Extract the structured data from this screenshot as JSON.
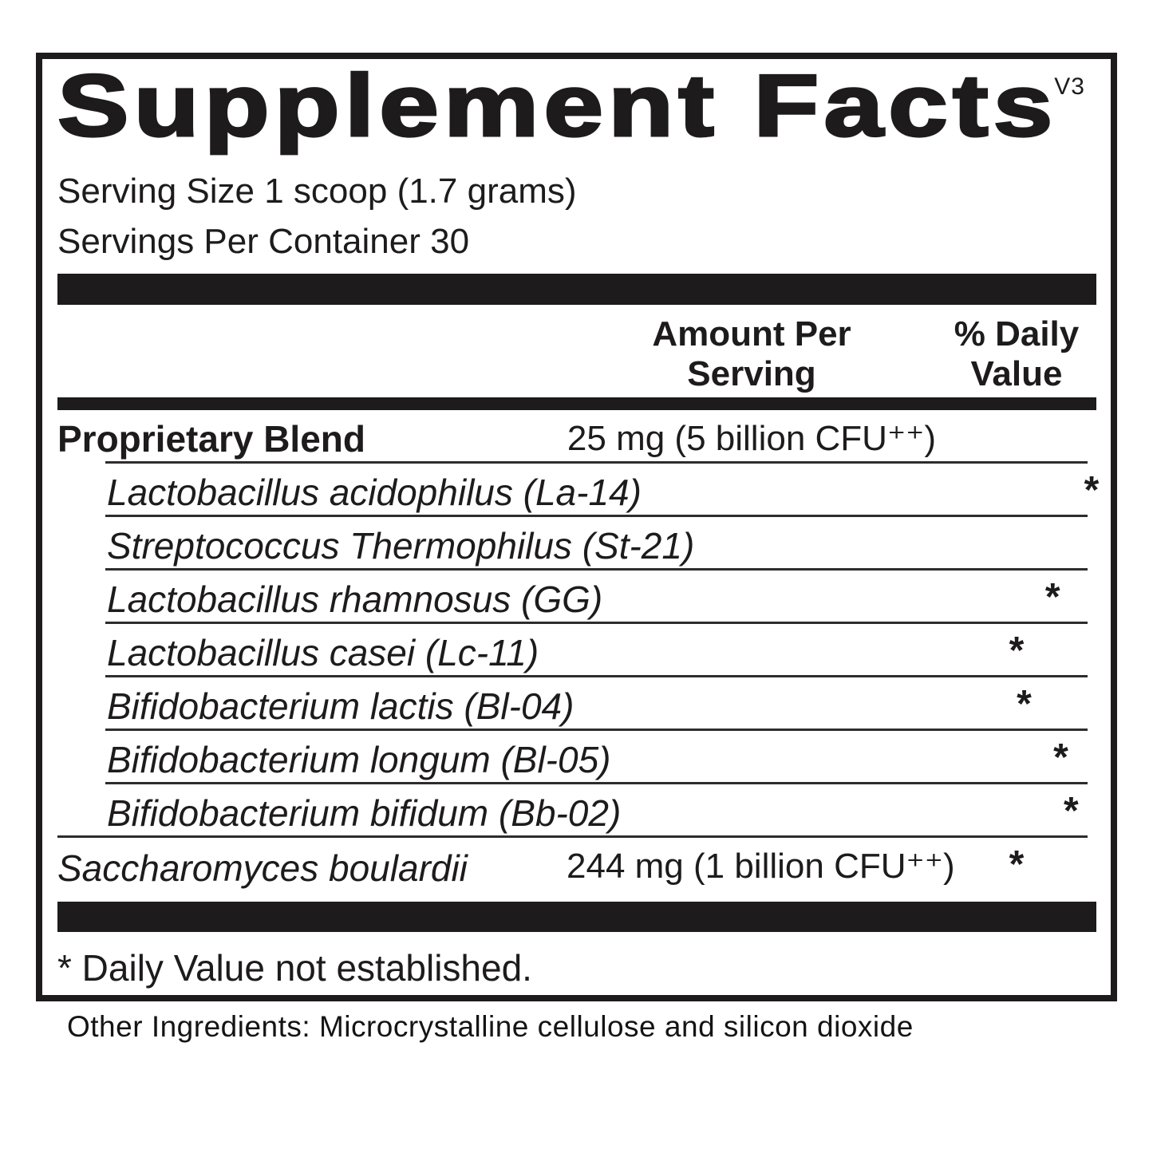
{
  "panel": {
    "title": "Supplement Facts",
    "version_tag": "V3",
    "serving_size": "Serving Size 1 scoop (1.7 grams)",
    "servings_per_container": "Servings Per Container 30",
    "header": {
      "amount_col_line1": "Amount Per",
      "amount_col_line2": "Serving",
      "dv_col_line1": "% Daily",
      "dv_col_line2": "Value"
    },
    "rows": [
      {
        "name": "Proprietary Blend",
        "amount": "25 mg (5 billion CFU⁺⁺)",
        "dv": ""
      },
      {
        "name": "Lactobacillus acidophilus (La-14)",
        "amount": "",
        "dv": "*"
      },
      {
        "name": "Streptococcus Thermophilus (St-21)",
        "amount": "",
        "dv": "*"
      },
      {
        "name": "Lactobacillus rhamnosus (GG)",
        "amount": "",
        "dv": "*"
      },
      {
        "name": "Lactobacillus casei (Lc-11)",
        "amount": "",
        "dv": "*"
      },
      {
        "name": "Bifidobacterium lactis (Bl-04)",
        "amount": "",
        "dv": "*"
      },
      {
        "name": "Bifidobacterium longum (Bl-05)",
        "amount": "",
        "dv": "*"
      },
      {
        "name": "Bifidobacterium bifidum (Bb-02)",
        "amount": "",
        "dv": "*"
      },
      {
        "name": "Saccharomyces boulardii",
        "amount": "244 mg (1 billion CFU⁺⁺)",
        "dv": "*"
      }
    ],
    "footnote": "* Daily Value not established.",
    "colors": {
      "ink": "#1d1b1c",
      "background": "#ffffff"
    }
  },
  "other_ingredients": "Other Ingredients: Microcrystalline cellulose and silicon dioxide"
}
